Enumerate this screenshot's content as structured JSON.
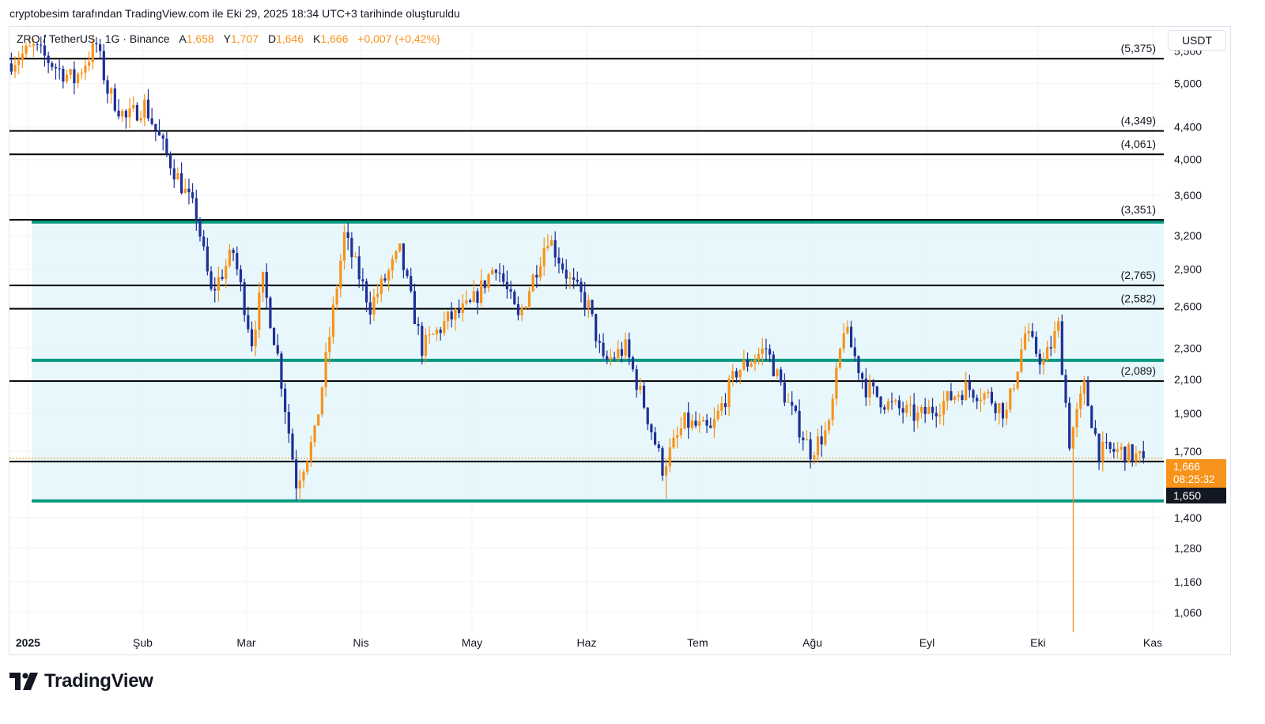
{
  "header": {
    "attribution": "cryptobesim tarafından TradingView.com ile Eki 29, 2025 18:34 UTC+3 tarihinde oluşturuldu"
  },
  "legend": {
    "symbol": "ZRO / TetherUS · 1G · Binance",
    "open_label": "A",
    "open": "1,658",
    "high_label": "Y",
    "high": "1,707",
    "low_label": "D",
    "low": "1,646",
    "close_label": "K",
    "close": "1,666",
    "change": "+0,007 (+0,42%)"
  },
  "currency_button": "USDT",
  "price_badges": {
    "last_price": "1,666",
    "countdown": "08:25:32",
    "low_marker": "1,650"
  },
  "brand": {
    "name": "TradingView"
  },
  "colors": {
    "up": "#f7931a",
    "down": "#1e2f97",
    "channel_line": "#089981",
    "channel_fill": "#e3f6fa",
    "level_line": "#000000",
    "badge_last": "#f7931a",
    "badge_low": "#131722"
  },
  "chart_data": {
    "type": "candlestick",
    "title": "ZRO / TetherUS · 1G · Binance",
    "scale": "log",
    "ylim": [
      1.0,
      5.9
    ],
    "y_ticks": [
      5.5,
      5.0,
      4.4,
      4.0,
      3.6,
      3.2,
      2.9,
      2.6,
      2.3,
      2.1,
      1.9,
      1.7,
      1.4,
      1.28,
      1.16,
      1.06
    ],
    "y_tick_labels": [
      "5,500",
      "5,000",
      "4,400",
      "4,000",
      "3,600",
      "3,200",
      "2,900",
      "2,600",
      "2,300",
      "2,100",
      "1,900",
      "1,700",
      "1,400",
      "1,280",
      "1,160",
      "1,060"
    ],
    "x_ticks": [
      {
        "label": "2025",
        "date": "2025-01-01",
        "bold": true
      },
      {
        "label": "Şub",
        "date": "2025-02-01"
      },
      {
        "label": "Mar",
        "date": "2025-03-01"
      },
      {
        "label": "Nis",
        "date": "2025-04-01"
      },
      {
        "label": "May",
        "date": "2025-05-01"
      },
      {
        "label": "Haz",
        "date": "2025-06-01"
      },
      {
        "label": "Tem",
        "date": "2025-07-01"
      },
      {
        "label": "Ağu",
        "date": "2025-08-01"
      },
      {
        "label": "Eyl",
        "date": "2025-09-01"
      },
      {
        "label": "Eki",
        "date": "2025-10-01"
      },
      {
        "label": "Kas",
        "date": "2025-11-01"
      }
    ],
    "horizontal_levels": [
      5.375,
      4.349,
      4.061,
      3.351,
      2.765,
      2.582,
      2.089
    ],
    "horizontal_level_labels": [
      "(5,375)",
      "(4,349)",
      "(4,061)",
      "(3,351)",
      "(2,765)",
      "(2,582)",
      "(2,089)"
    ],
    "support_line": 1.65,
    "channel": {
      "start": "2025-01-02",
      "top": 3.33,
      "middle": 2.22,
      "bottom": 1.47
    },
    "last_close": 1.666,
    "price_path": [
      [
        "2024-12-27",
        5.3
      ],
      [
        "2025-01-03",
        5.55
      ],
      [
        "2025-01-10",
        5.2
      ],
      [
        "2025-01-14",
        5.05
      ],
      [
        "2025-01-20",
        5.6
      ],
      [
        "2025-01-23",
        4.9
      ],
      [
        "2025-01-28",
        4.5
      ],
      [
        "2025-02-02",
        4.7
      ],
      [
        "2025-02-08",
        4.05
      ],
      [
        "2025-02-16",
        3.4
      ],
      [
        "2025-02-20",
        2.7
      ],
      [
        "2025-02-26",
        3.05
      ],
      [
        "2025-03-03",
        2.35
      ],
      [
        "2025-03-06",
        2.8
      ],
      [
        "2025-03-10",
        2.25
      ],
      [
        "2025-03-15",
        1.55
      ],
      [
        "2025-03-20",
        1.78
      ],
      [
        "2025-03-28",
        3.2
      ],
      [
        "2025-04-04",
        2.6
      ],
      [
        "2025-04-12",
        3.05
      ],
      [
        "2025-04-18",
        2.3
      ],
      [
        "2025-04-25",
        2.5
      ],
      [
        "2025-05-01",
        2.6
      ],
      [
        "2025-05-08",
        2.95
      ],
      [
        "2025-05-14",
        2.5
      ],
      [
        "2025-05-22",
        3.2
      ],
      [
        "2025-05-28",
        2.8
      ],
      [
        "2025-06-02",
        2.6
      ],
      [
        "2025-06-06",
        2.2
      ],
      [
        "2025-06-12",
        2.3
      ],
      [
        "2025-06-17",
        1.95
      ],
      [
        "2025-06-22",
        1.62
      ],
      [
        "2025-06-28",
        1.85
      ],
      [
        "2025-07-05",
        1.8
      ],
      [
        "2025-07-12",
        2.15
      ],
      [
        "2025-07-20",
        2.3
      ],
      [
        "2025-07-26",
        1.95
      ],
      [
        "2025-08-01",
        1.7
      ],
      [
        "2025-08-06",
        1.82
      ],
      [
        "2025-08-10",
        2.45
      ],
      [
        "2025-08-16",
        2.05
      ],
      [
        "2025-08-22",
        1.95
      ],
      [
        "2025-08-30",
        1.88
      ],
      [
        "2025-09-05",
        1.95
      ],
      [
        "2025-09-12",
        2.05
      ],
      [
        "2025-09-18",
        2.0
      ],
      [
        "2025-09-23",
        1.9
      ],
      [
        "2025-09-28",
        2.4
      ],
      [
        "2025-10-03",
        2.2
      ],
      [
        "2025-10-07",
        2.45
      ],
      [
        "2025-10-10",
        1.75
      ],
      [
        "2025-10-14",
        2.05
      ],
      [
        "2025-10-18",
        1.7
      ],
      [
        "2025-10-24",
        1.7
      ],
      [
        "2025-10-29",
        1.666
      ]
    ],
    "notable_wicks": [
      {
        "date": "2025-10-10",
        "low": 1.0
      },
      {
        "date": "2025-06-22",
        "low": 1.48
      },
      {
        "date": "2025-03-15",
        "low": 1.47
      }
    ]
  }
}
